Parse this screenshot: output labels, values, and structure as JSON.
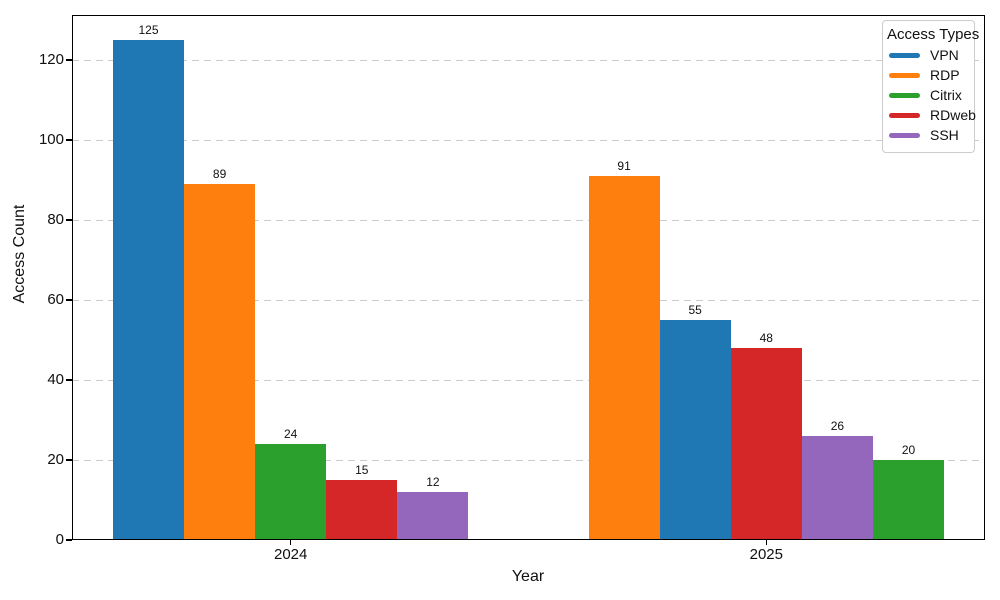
{
  "chart_data": {
    "type": "bar",
    "title": "",
    "xlabel": "Year",
    "ylabel": "Access Count",
    "legend_title": "Access Types",
    "legend_position": "upper right",
    "grid": {
      "axis": "y",
      "style": "dashed",
      "color": "#cbcbcb"
    },
    "bar_value_labels": true,
    "yticks": [
      0,
      20,
      40,
      60,
      80,
      100,
      120
    ],
    "ylim": [
      0,
      131.25
    ],
    "legend_items": [
      {
        "name": "VPN",
        "color": "#1f77b4"
      },
      {
        "name": "RDP",
        "color": "#ff7f0e"
      },
      {
        "name": "Citrix",
        "color": "#2ca02c"
      },
      {
        "name": "RDweb",
        "color": "#d62728"
      },
      {
        "name": "SSH",
        "color": "#9467bd"
      }
    ],
    "groups": [
      {
        "label": "2024",
        "bars": [
          {
            "series": "VPN",
            "value": 125
          },
          {
            "series": "RDP",
            "value": 89
          },
          {
            "series": "Citrix",
            "value": 24
          },
          {
            "series": "RDweb",
            "value": 15
          },
          {
            "series": "SSH",
            "value": 12
          }
        ]
      },
      {
        "label": "2025",
        "bars": [
          {
            "series": "RDP",
            "value": 91
          },
          {
            "series": "VPN",
            "value": 55
          },
          {
            "series": "RDweb",
            "value": 48
          },
          {
            "series": "SSH",
            "value": 26
          },
          {
            "series": "Citrix",
            "value": 20
          }
        ]
      }
    ]
  }
}
